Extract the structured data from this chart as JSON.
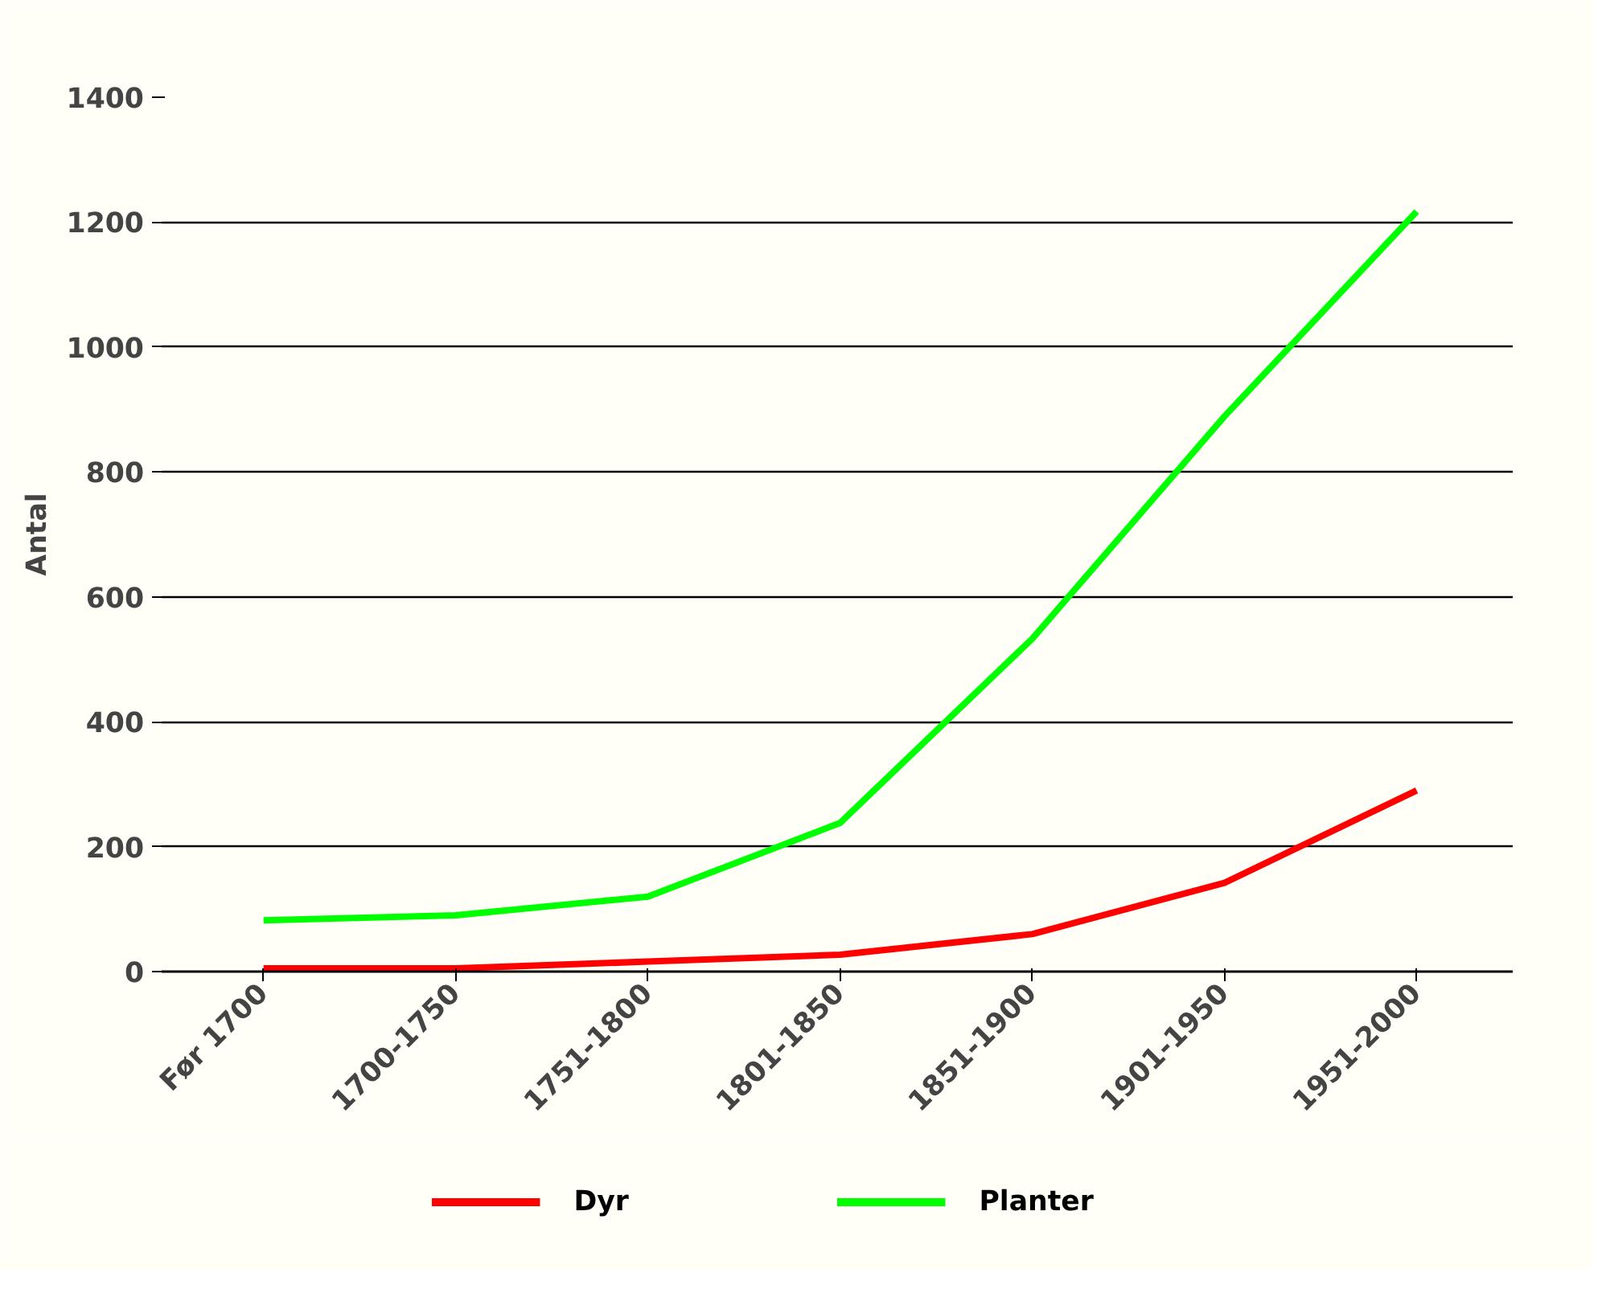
{
  "chart_data": {
    "type": "line",
    "ylabel": "Antal",
    "categories": [
      "Før 1700",
      "1700-1750",
      "1751-1800",
      "1801-1850",
      "1851-1900",
      "1901-1950",
      "1951-2000"
    ],
    "series": [
      {
        "name": "Dyr",
        "color": "#ff0000",
        "values": [
          5,
          5,
          16,
          27,
          60,
          142,
          290
        ]
      },
      {
        "name": "Planter",
        "color": "#00ff00",
        "values": [
          82,
          90,
          120,
          238,
          533,
          889,
          1217
        ]
      }
    ],
    "ylim": [
      0,
      1400
    ],
    "yticks": [
      0,
      200,
      400,
      600,
      800,
      1000,
      1200,
      1400
    ],
    "grid": "y",
    "legend": "bottom",
    "marker": "none",
    "line_style": "solid"
  }
}
